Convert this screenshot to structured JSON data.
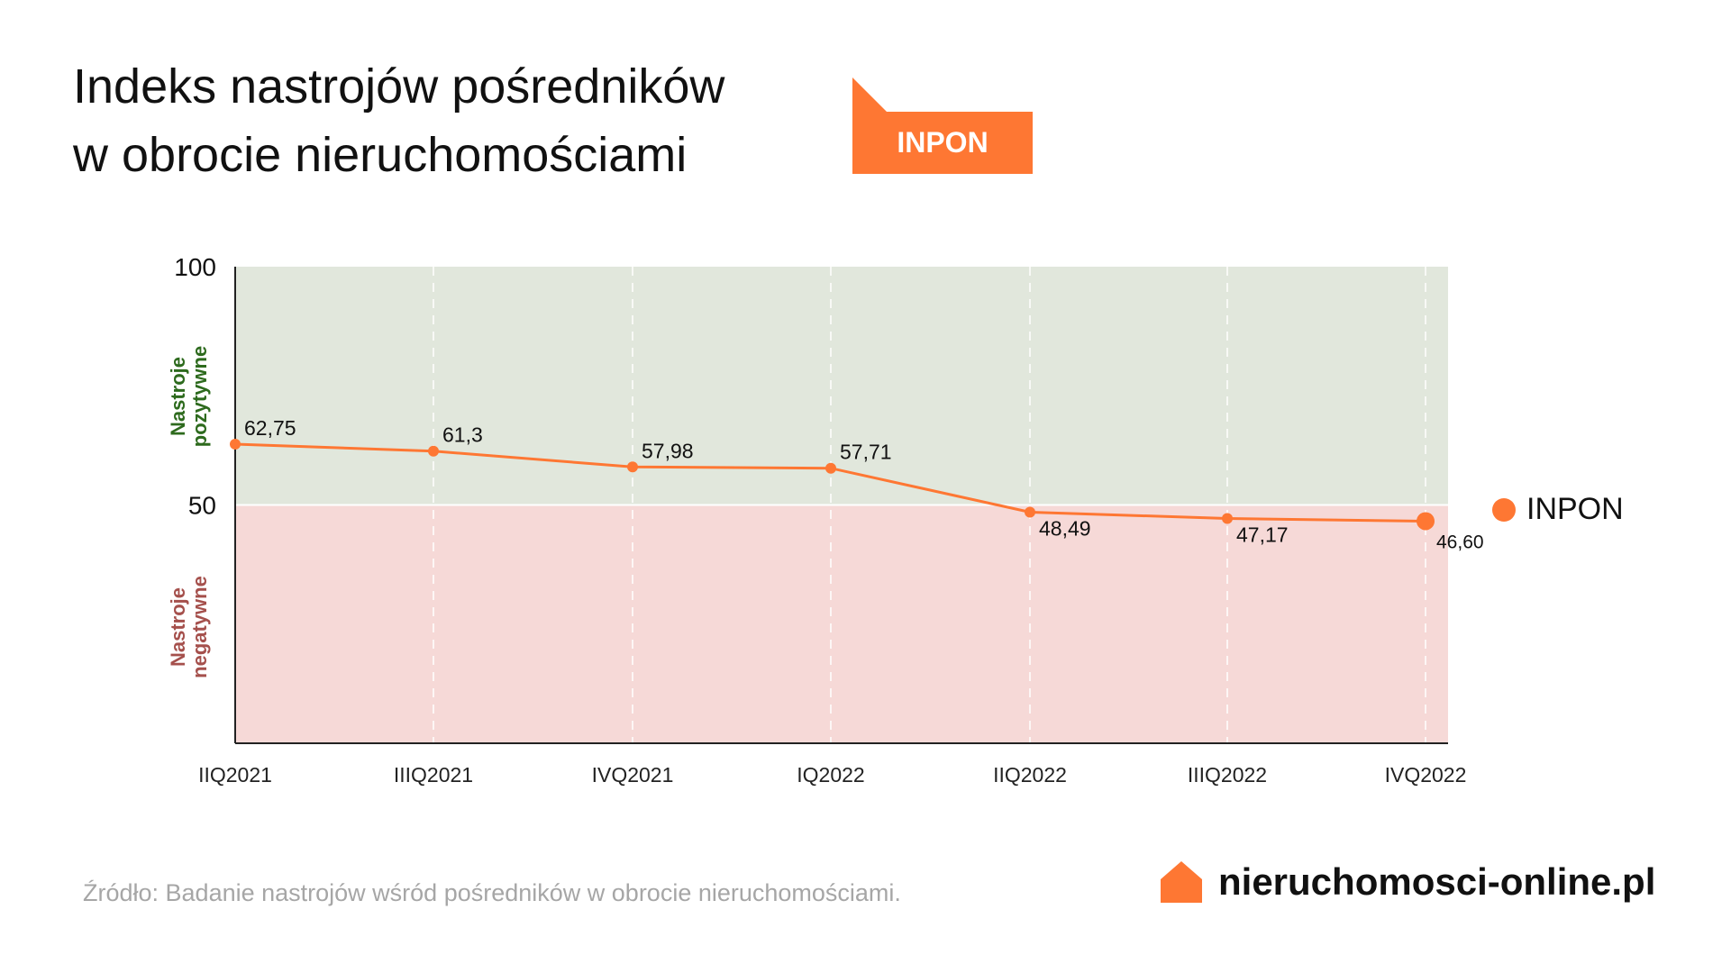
{
  "title": {
    "line1": "Indeks nastrojów pośredników",
    "line2": "w obrocie nieruchomościami"
  },
  "badge": {
    "label": "INPON"
  },
  "colors": {
    "accent": "#fe7733",
    "positive_bg": "#e1e7dc",
    "negative_bg": "#f6d9d7",
    "positive_text": "#2d6a1d",
    "negative_text": "#a5504c"
  },
  "zones": {
    "positive": [
      "Nastroje",
      "pozytywne"
    ],
    "negative": [
      "Nastroje",
      "negatywne"
    ]
  },
  "chart_data": {
    "type": "line",
    "categories": [
      "IIQ2021",
      "IIIQ2021",
      "IVQ2021",
      "IQ2022",
      "IIQ2022",
      "IIIQ2022",
      "IVQ2022"
    ],
    "series": [
      {
        "name": "INPON",
        "values": [
          62.75,
          61.3,
          57.98,
          57.71,
          48.49,
          47.17,
          46.6
        ]
      }
    ],
    "value_labels": [
      "62,75",
      "61,3",
      "57,98",
      "57,71",
      "48,49",
      "47,17",
      "46,60"
    ],
    "ylim": [
      0,
      100
    ],
    "yticks": [
      "100",
      "50"
    ],
    "ytick_values": [
      100,
      50
    ],
    "legend_placement": "right",
    "grid": "vertical dashed"
  },
  "legend": {
    "label": "INPON"
  },
  "footer": {
    "source": "Źródło: Badanie nastrojów wśród pośredników w obrocie nieruchomościami.",
    "brand": "nieruchomosci-online.pl"
  }
}
